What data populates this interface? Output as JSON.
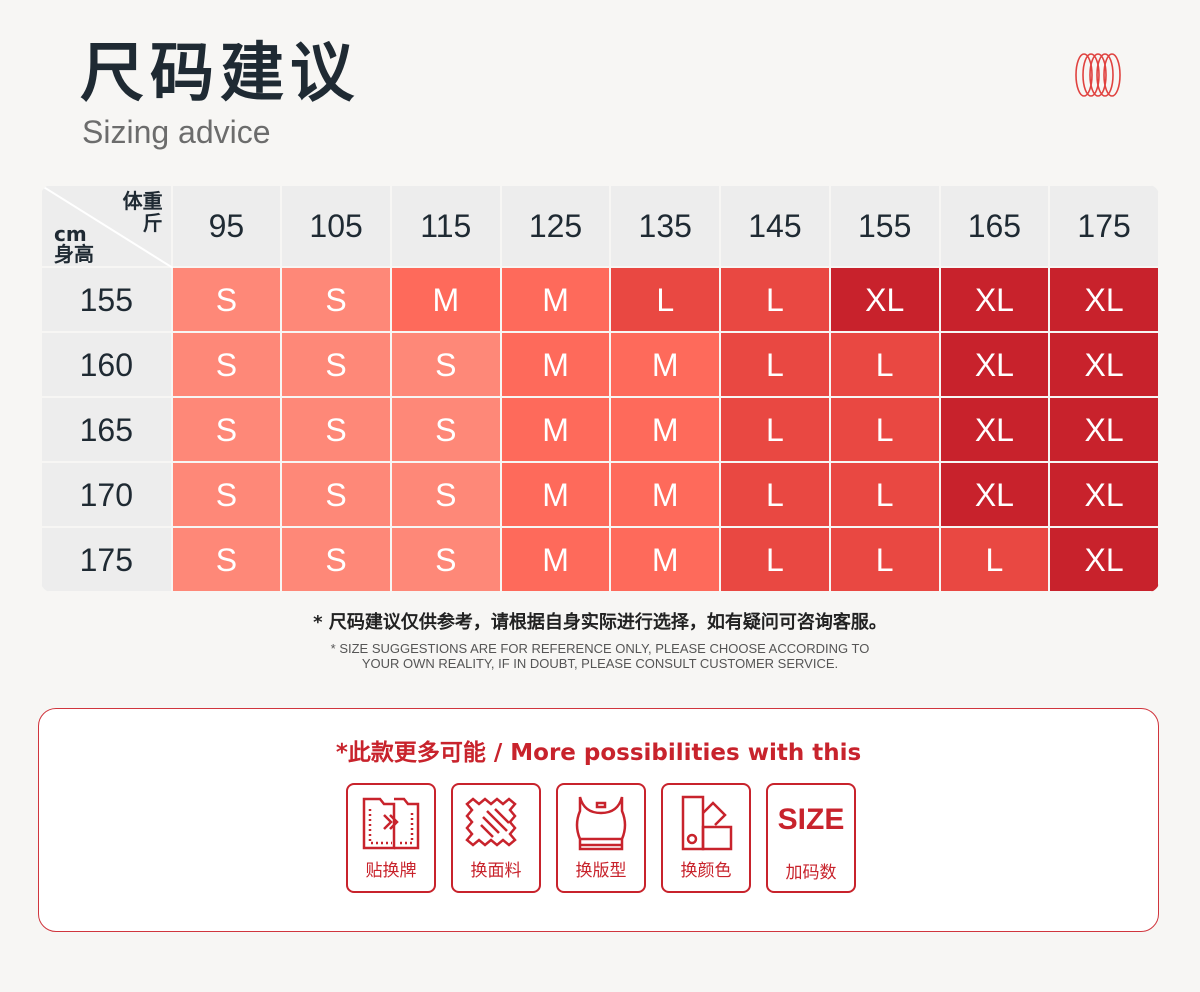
{
  "title": "尺码建议",
  "subtitle": "Sizing advice",
  "table": {
    "corner": {
      "weight_label": "体重",
      "weight_unit": "斤",
      "height_unit": "cm",
      "height_label": "身高"
    },
    "weights": [
      "95",
      "105",
      "115",
      "125",
      "135",
      "145",
      "155",
      "165",
      "175"
    ],
    "rows": [
      {
        "height": "155",
        "sizes": [
          "S",
          "S",
          "M",
          "M",
          "L",
          "L",
          "XL",
          "XL",
          "XL"
        ]
      },
      {
        "height": "160",
        "sizes": [
          "S",
          "S",
          "S",
          "M",
          "M",
          "L",
          "L",
          "XL",
          "XL"
        ]
      },
      {
        "height": "165",
        "sizes": [
          "S",
          "S",
          "S",
          "M",
          "M",
          "L",
          "L",
          "XL",
          "XL"
        ]
      },
      {
        "height": "170",
        "sizes": [
          "S",
          "S",
          "S",
          "M",
          "M",
          "L",
          "L",
          "XL",
          "XL"
        ]
      },
      {
        "height": "175",
        "sizes": [
          "S",
          "S",
          "S",
          "M",
          "M",
          "L",
          "L",
          "L",
          "XL"
        ]
      }
    ]
  },
  "size_colors": {
    "S": "#fe8878",
    "M": "#fe6a5b",
    "L": "#e94842",
    "XL": "#c8222c"
  },
  "note_cn": "* 尺码建议仅供参考，请根据自身实际进行选择，如有疑问可咨询客服。",
  "note_en": [
    "* SIZE SUGGESTIONS ARE FOR REFERENCE ONLY, PLEASE CHOOSE ACCORDING TO",
    "YOUR OWN REALITY, IF IN DOUBT, PLEASE CONSULT CUSTOMER SERVICE."
  ],
  "panel": {
    "title": "*此款更多可能 / More possibilities with this",
    "options": [
      {
        "label": "贴换牌",
        "icon": "label-swap-icon"
      },
      {
        "label": "换面料",
        "icon": "fabric-icon"
      },
      {
        "label": "换版型",
        "icon": "garment-icon"
      },
      {
        "label": "换颜色",
        "icon": "color-swatch-icon"
      },
      {
        "label": "加码数",
        "icon": "size-icon",
        "icon_text": "SIZE"
      }
    ]
  }
}
